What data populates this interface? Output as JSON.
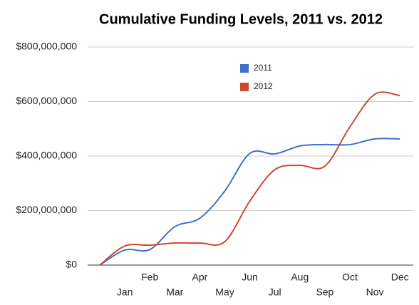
{
  "chart_data": {
    "type": "line",
    "title": "Cumulative Funding Levels, 2011 vs. 2012",
    "categories": [
      null,
      "Jan",
      "Feb",
      "Mar",
      "Apr",
      "May",
      "Jun",
      "Jul",
      "Aug",
      "Sep",
      "Oct",
      "Nov",
      "Dec"
    ],
    "series": [
      {
        "name": "2011",
        "color": "#3d72c9",
        "values": [
          0,
          55000000,
          57000000,
          141000000,
          172000000,
          272000000,
          410000000,
          408000000,
          437000000,
          442000000,
          442000000,
          463000000,
          463000000
        ]
      },
      {
        "name": "2012",
        "color": "#cc4a2f",
        "values": [
          0,
          70000000,
          73000000,
          81000000,
          81000000,
          86000000,
          235000000,
          350000000,
          366000000,
          363000000,
          507000000,
          627000000,
          622000000
        ]
      }
    ],
    "ylim": [
      0,
      800000000
    ],
    "yticks": [
      {
        "value": 0,
        "label": "$0"
      },
      {
        "value": 200000000,
        "label": "$200,000,000"
      },
      {
        "value": 400000000,
        "label": "$400,000,000"
      },
      {
        "value": 600000000,
        "label": "$600,000,000"
      },
      {
        "value": 800000000,
        "label": "$800,000,000"
      }
    ],
    "grid": true,
    "legend": "top"
  }
}
